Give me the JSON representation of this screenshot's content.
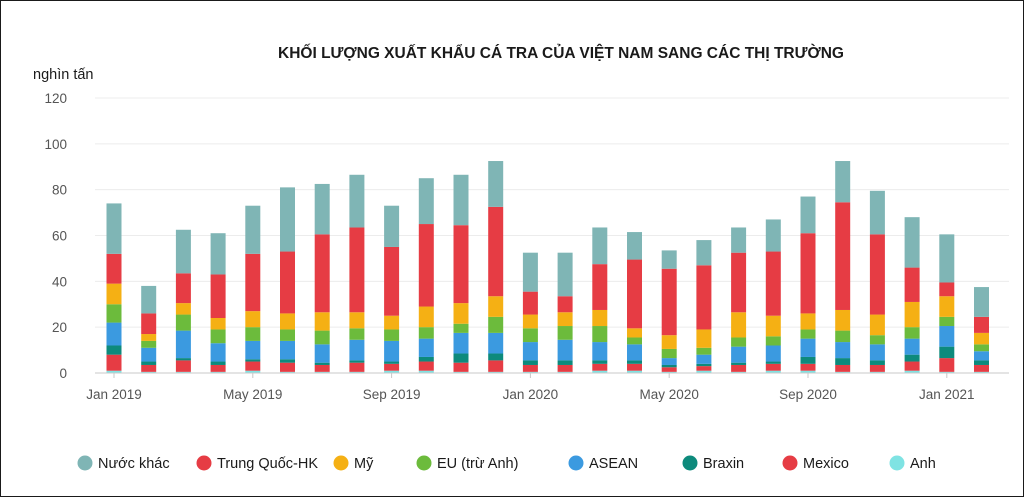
{
  "chart_data": {
    "type": "bar",
    "stacked": true,
    "title": "KHỐI LƯỢNG XUẤT KHẨU CÁ TRA CỦA VIỆT NAM SANG CÁC THỊ TRƯỜNG",
    "ylabel": "nghìn tấn",
    "xlabel": "",
    "ylim": [
      0,
      120
    ],
    "yticks": [
      0,
      20,
      40,
      60,
      80,
      100,
      120
    ],
    "grid": true,
    "legend_position": "bottom",
    "categories": [
      "01/2019",
      "02/2019",
      "03/2019",
      "04/2019",
      "05/2019",
      "06/2019",
      "07/2019",
      "08/2019",
      "09/2019",
      "10/2019",
      "11/2019",
      "12/2019",
      "01/2020",
      "02/2020",
      "03/2020",
      "04/2020",
      "05/2020",
      "06/2020",
      "07/2020",
      "08/2020",
      "09/2020",
      "10/2020",
      "11/2020",
      "12/2020",
      "01/2021",
      "02/2021"
    ],
    "x_tick_labels": [
      {
        "index": 0,
        "label": "Jan 2019"
      },
      {
        "index": 4,
        "label": "May 2019"
      },
      {
        "index": 8,
        "label": "Sep 2019"
      },
      {
        "index": 12,
        "label": "Jan 2020"
      },
      {
        "index": 16,
        "label": "May 2020"
      },
      {
        "index": 20,
        "label": "Sep 2020"
      },
      {
        "index": 24,
        "label": "Jan 2021"
      }
    ],
    "series": [
      {
        "name": "Anh",
        "color": "#7fe3e3",
        "values": [
          1,
          0.5,
          0.5,
          0.5,
          1,
          0.5,
          0.5,
          0.5,
          1,
          1,
          0.5,
          0.5,
          0.5,
          0.5,
          1,
          1,
          0.5,
          1,
          0.5,
          1,
          1,
          0.5,
          0.5,
          1,
          0.5,
          0.5
        ]
      },
      {
        "name": "Mexico",
        "color": "#e63c44",
        "values": [
          7,
          3,
          5,
          3,
          4,
          4,
          3,
          4,
          3,
          4,
          4,
          5,
          3,
          3,
          3,
          3,
          2,
          2,
          3,
          3,
          3,
          3,
          3,
          4,
          6,
          3
        ]
      },
      {
        "name": "Braxin",
        "color": "#0d8a7c",
        "values": [
          4,
          1.5,
          1,
          1.5,
          1,
          1.5,
          1,
          1,
          1,
          2,
          4,
          3,
          2,
          2,
          1.5,
          1.5,
          1,
          1,
          1,
          1,
          3,
          3,
          2,
          3,
          5,
          2
        ]
      },
      {
        "name": "ASEAN",
        "color": "#3b9ae0",
        "values": [
          10,
          6,
          12,
          8,
          8,
          8,
          8,
          9,
          9,
          8,
          9,
          9,
          8,
          9,
          8,
          7,
          3,
          4,
          7,
          7,
          8,
          7,
          7,
          7,
          9,
          4
        ]
      },
      {
        "name": "EU (trừ Anh)",
        "color": "#6cbb3c",
        "values": [
          8,
          3,
          7,
          6,
          6,
          5,
          6,
          5,
          5,
          5,
          4,
          7,
          6,
          6,
          7,
          3,
          4,
          3,
          4,
          4,
          4,
          5,
          4,
          5,
          4,
          3
        ]
      },
      {
        "name": "Mỹ",
        "color": "#f5b014",
        "values": [
          9,
          3,
          5,
          5,
          7,
          7,
          8,
          7,
          6,
          9,
          9,
          9,
          6,
          6,
          7,
          4,
          6,
          8,
          11,
          9,
          7,
          9,
          9,
          11,
          9,
          5
        ]
      },
      {
        "name": "Trung Quốc-HK",
        "color": "#e63c44",
        "values": [
          13,
          9,
          13,
          19,
          25,
          27,
          34,
          37,
          30,
          36,
          34,
          39,
          10,
          7,
          20,
          30,
          29,
          28,
          26,
          28,
          35,
          47,
          35,
          15,
          6,
          7
        ]
      },
      {
        "name": "Nước khác",
        "color": "#7fb5b5",
        "values": [
          22,
          12,
          19,
          18,
          21,
          28,
          22,
          23,
          18,
          20,
          22,
          20,
          17,
          19,
          16,
          12,
          8,
          11,
          11,
          14,
          16,
          18,
          19,
          22,
          21,
          13
        ]
      }
    ]
  },
  "legend_order": [
    "Nước khác",
    "Trung Quốc-HK",
    "Mỹ",
    "EU (trừ Anh)",
    "ASEAN",
    "Braxin",
    "Mexico",
    "Anh"
  ]
}
